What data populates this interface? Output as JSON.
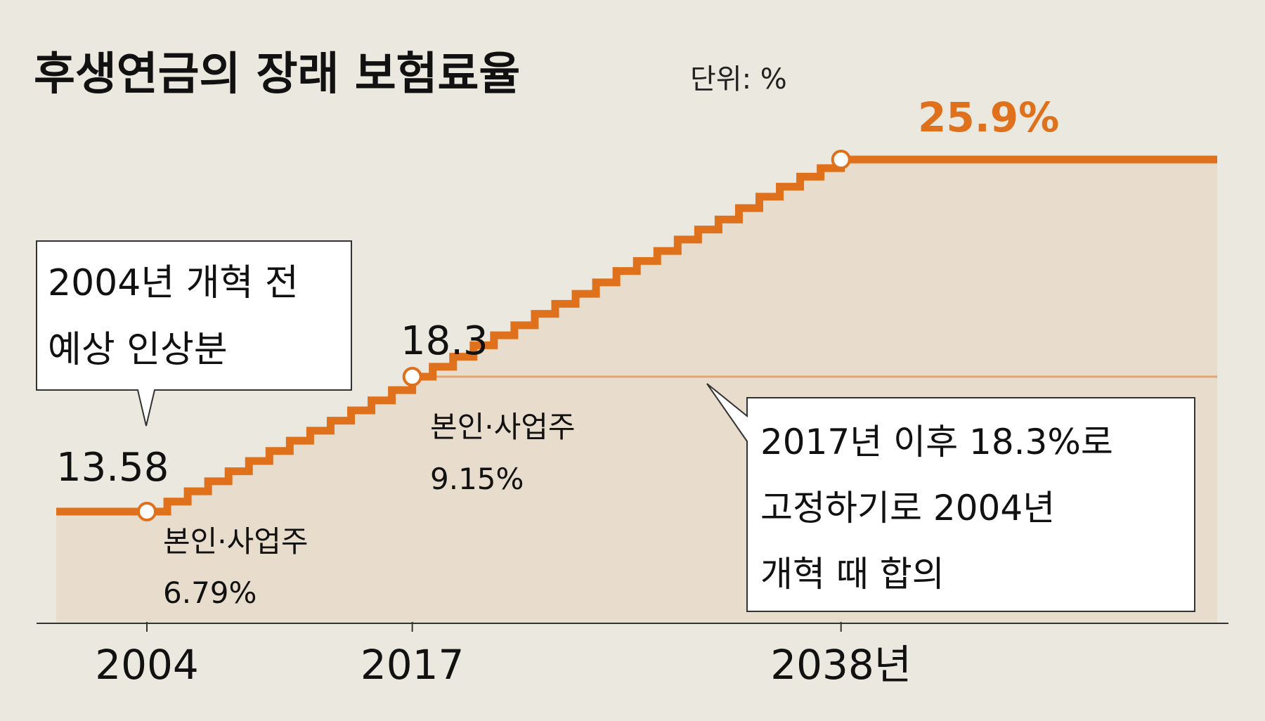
{
  "chart_data": {
    "type": "line",
    "step": true,
    "title": "후생연금의 장래 보험료율",
    "unit_label": "단위: %",
    "x_ticks": [
      "2004",
      "2017",
      "2038년"
    ],
    "x": [
      2001,
      2004,
      2005,
      2006,
      2007,
      2008,
      2009,
      2010,
      2011,
      2012,
      2013,
      2014,
      2015,
      2016,
      2017,
      2018,
      2019,
      2020,
      2021,
      2022,
      2023,
      2024,
      2025,
      2026,
      2027,
      2028,
      2029,
      2030,
      2031,
      2032,
      2033,
      2034,
      2035,
      2036,
      2037,
      2038,
      2046
    ],
    "series": [
      {
        "values": [
          13.58,
          13.58,
          13.93,
          14.29,
          14.64,
          14.99,
          15.35,
          15.7,
          16.06,
          16.41,
          16.76,
          17.12,
          17.47,
          17.83,
          18.3,
          18.65,
          19.0,
          19.4,
          19.75,
          20.1,
          20.5,
          20.85,
          21.2,
          21.6,
          22.0,
          22.35,
          22.7,
          23.1,
          23.45,
          23.8,
          24.2,
          24.6,
          24.95,
          25.3,
          25.6,
          25.9,
          25.9
        ]
      }
    ],
    "reference_line": 18.3,
    "ylim": [
      10.5,
      27
    ]
  },
  "labels": {
    "start_value": "13.58",
    "mid_value": "18.3",
    "end_value": "25.9%",
    "note_2004_line1": "본인·사업주",
    "note_2004_line2": "6.79%",
    "note_2017_line1": "본인·사업주",
    "note_2017_line2": "9.15%"
  },
  "callouts": {
    "left_line1": "2004년 개혁 전",
    "left_line2": "예상 인상분",
    "right_line1": "2017년 이후 18.3%로",
    "right_line2": "고정하기로 2004년",
    "right_line3": "개혁 때 합의"
  },
  "colors": {
    "background": "#ebe8df",
    "area": "#e8ddcc",
    "line": "#e0711c",
    "reference_line": "#e2a573",
    "axis": "#333333",
    "text": "#111111"
  }
}
